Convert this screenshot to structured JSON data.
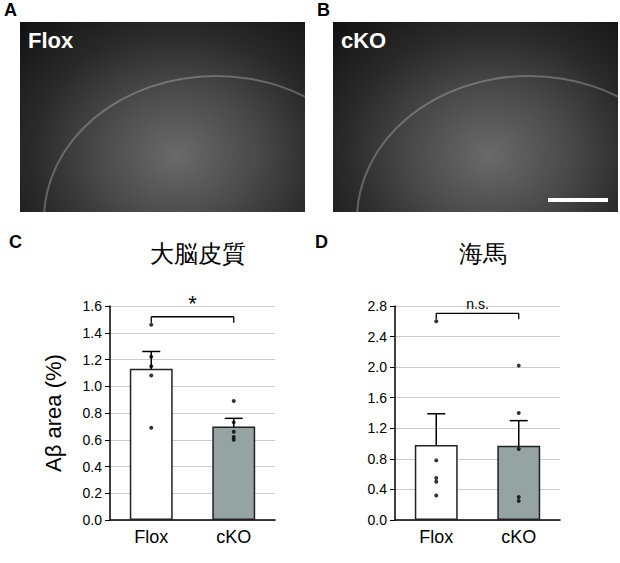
{
  "images": [
    {
      "letter": "A",
      "label": "Flox"
    },
    {
      "letter": "B",
      "label": "cKO"
    }
  ],
  "chart_data": [
    {
      "panel": "C",
      "type": "bar",
      "title": "大脳皮質",
      "y_label": "Aβ area (%)",
      "categories": [
        "Flox",
        "cKO"
      ],
      "values": [
        1.13,
        0.7
      ],
      "error": [
        0.13,
        0.06
      ],
      "points": [
        [
          1.46,
          1.22,
          1.15,
          1.08,
          0.69
        ],
        [
          0.89,
          0.73,
          0.66,
          0.62,
          0.6
        ]
      ],
      "colors": [
        "#ffffff",
        "#95a3a3"
      ],
      "annotation": "*",
      "ylim": [
        0,
        1.6
      ],
      "yticks": [
        {
          "value": 0,
          "label": "0.0"
        },
        0.2,
        0.4,
        0.6,
        0.8,
        {
          "value": 1,
          "label": "1.0"
        },
        1.2,
        1.4,
        1.6
      ],
      "grid": true
    },
    {
      "panel": "D",
      "type": "bar",
      "title": "海馬",
      "categories": [
        "Flox",
        "cKO"
      ],
      "values": [
        0.98,
        0.97
      ],
      "error": [
        0.41,
        0.33
      ],
      "points": [
        [
          2.6,
          0.78,
          0.55,
          0.5,
          0.32
        ],
        [
          2.02,
          1.4,
          0.93,
          0.3,
          0.25
        ]
      ],
      "colors": [
        "#ffffff",
        "#95a3a3"
      ],
      "annotation": "n.s.",
      "ylim": [
        0,
        2.8
      ],
      "yticks": [
        {
          "value": 0,
          "label": "0.0"
        },
        0.4,
        0.8,
        1.2,
        1.6,
        {
          "value": 2,
          "label": "2.0"
        },
        2.4,
        2.8
      ],
      "grid": true
    }
  ]
}
